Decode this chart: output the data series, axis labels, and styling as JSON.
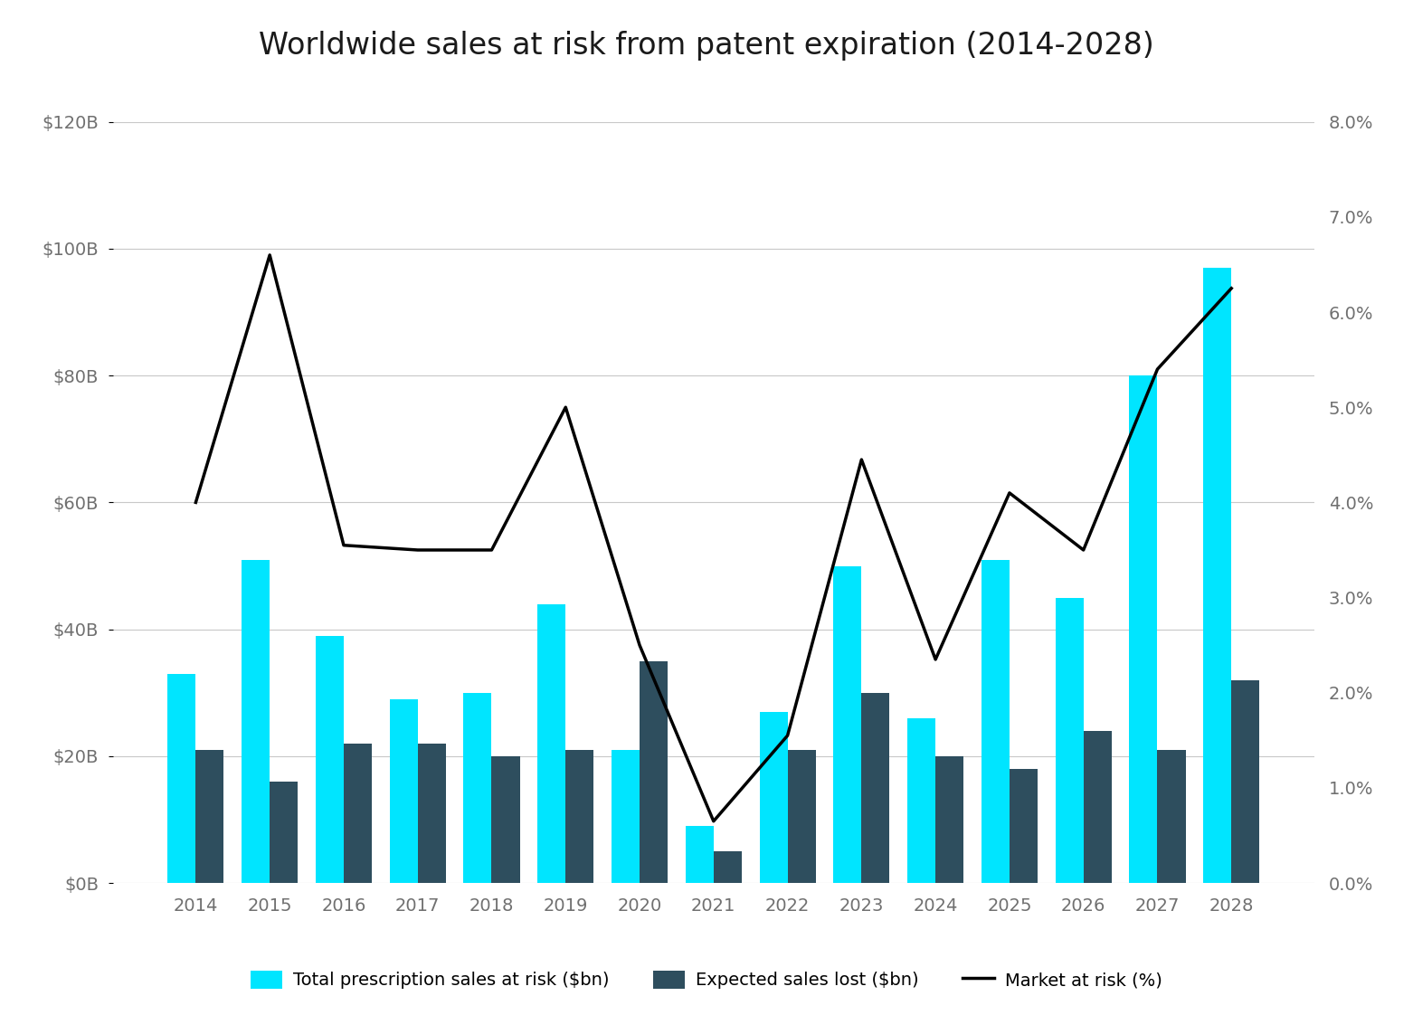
{
  "title": "Worldwide sales at risk from patent expiration (2014-2028)",
  "years": [
    2014,
    2015,
    2016,
    2017,
    2018,
    2019,
    2020,
    2021,
    2022,
    2023,
    2024,
    2025,
    2026,
    2027,
    2028
  ],
  "total_sales": [
    33,
    51,
    39,
    29,
    30,
    44,
    21,
    9,
    27,
    50,
    26,
    51,
    45,
    80,
    97
  ],
  "expected_lost": [
    21,
    16,
    22,
    22,
    20,
    21,
    35,
    5,
    21,
    30,
    20,
    18,
    24,
    21,
    32
  ],
  "market_at_risk_pct": [
    4.0,
    6.6,
    3.55,
    3.5,
    3.5,
    5.0,
    2.5,
    0.65,
    1.55,
    4.45,
    2.35,
    4.1,
    3.5,
    5.4,
    6.25
  ],
  "bar_color_cyan": "#00e5ff",
  "bar_color_teal": "#2e4e5e",
  "line_color": "#000000",
  "background_color": "#ffffff",
  "grid_color": "#c8c8c8",
  "text_color": "#707070",
  "title_color": "#1a1a1a",
  "ylim_left": [
    0,
    120
  ],
  "ylim_right": [
    0,
    8.0
  ],
  "yticks_left": [
    0,
    20,
    40,
    60,
    80,
    100,
    120
  ],
  "yticks_right": [
    0.0,
    1.0,
    2.0,
    3.0,
    4.0,
    5.0,
    6.0,
    7.0,
    8.0
  ],
  "ylabel_left_labels": [
    "$0B",
    "$20B",
    "$40B",
    "$60B",
    "$80B",
    "$100B",
    "$120B"
  ],
  "ylabel_right_labels": [
    "0.0%",
    "1.0%",
    "2.0%",
    "3.0%",
    "4.0%",
    "5.0%",
    "6.0%",
    "7.0%",
    "8.0%"
  ],
  "legend_labels": [
    "Total prescription sales at risk ($bn)",
    "Expected sales lost ($bn)",
    "Market at risk (%)"
  ],
  "title_fontsize": 24,
  "tick_fontsize": 14,
  "legend_fontsize": 14,
  "bar_width": 0.38
}
